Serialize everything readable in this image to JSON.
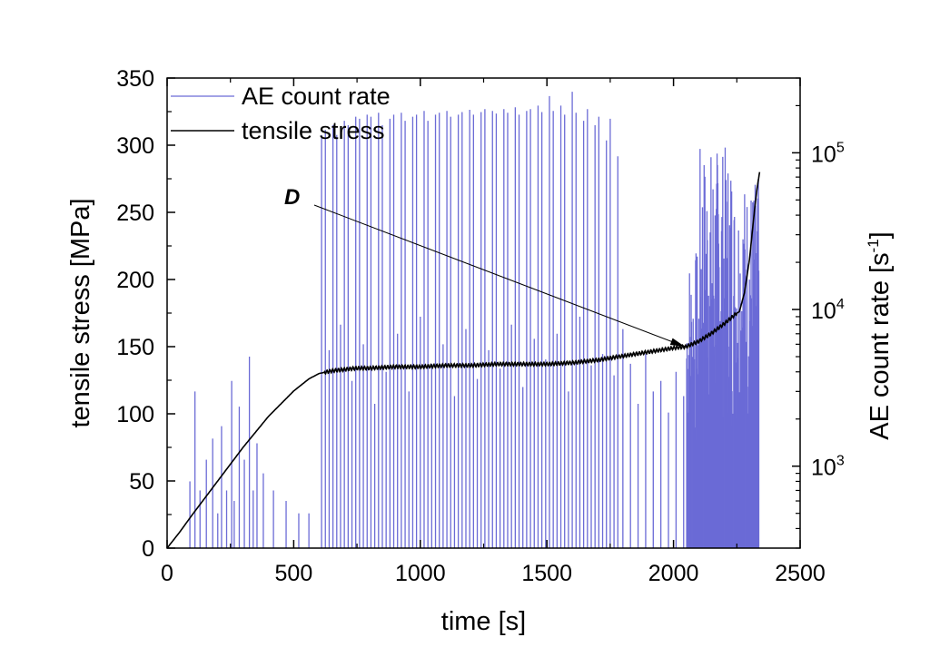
{
  "chart_data": {
    "type": "line",
    "xlabel": "time [s]",
    "xlim": [
      0,
      2500
    ],
    "x_ticks": [
      "0",
      "500",
      "1000",
      "1500",
      "2000",
      "2500"
    ],
    "y_left": {
      "label": "tensile stress [MPa]",
      "lim": [
        0,
        350
      ],
      "ticks": [
        "0",
        "50",
        "100",
        "150",
        "200",
        "250",
        "300",
        "350"
      ]
    },
    "y_right": {
      "label_main": "AE count rate [s",
      "label_exp": "-1",
      "label_close": "]",
      "scale": "log",
      "lim": [
        300,
        300000
      ],
      "ticks": [
        {
          "value": 1000,
          "base": "10",
          "exp": "3"
        },
        {
          "value": 10000,
          "base": "10",
          "exp": "4"
        },
        {
          "value": 100000,
          "base": "10",
          "exp": "5"
        }
      ]
    },
    "legend": {
      "placement": "top-left",
      "entries": [
        "AE count rate",
        "tensile stress"
      ]
    },
    "annotation": {
      "text": "D",
      "target": {
        "x": 2045,
        "y": 150
      }
    },
    "colors": {
      "ae": "#6b6bd6",
      "stress": "#000000"
    },
    "series": [
      {
        "name": "tensile stress",
        "axis": "left",
        "x": [
          0,
          50,
          100,
          200,
          300,
          400,
          500,
          560,
          600,
          650,
          700,
          750,
          800,
          900,
          1000,
          1100,
          1200,
          1300,
          1400,
          1500,
          1600,
          1700,
          1800,
          1900,
          2000,
          2050,
          2100,
          2150,
          2200,
          2250,
          2260,
          2280,
          2300,
          2320,
          2330,
          2340
        ],
        "y": [
          0,
          12,
          25,
          50,
          75,
          98,
          117,
          126,
          130,
          132,
          133,
          134,
          134,
          135,
          135,
          136,
          136,
          137,
          137,
          137,
          138,
          140,
          143,
          146,
          149,
          150,
          154,
          160,
          167,
          175,
          176,
          190,
          215,
          252,
          268,
          280
        ]
      },
      {
        "name": "AE count rate",
        "axis": "right",
        "type": "spikes",
        "x": [
          90,
          110,
          130,
          155,
          180,
          200,
          215,
          235,
          255,
          265,
          285,
          305,
          325,
          340,
          355,
          380,
          420,
          470,
          520,
          560,
          610,
          625,
          640,
          655,
          670,
          685,
          700,
          715,
          730,
          745,
          760,
          775,
          790,
          805,
          820,
          835,
          850,
          865,
          880,
          895,
          910,
          925,
          940,
          955,
          970,
          985,
          1000,
          1015,
          1030,
          1045,
          1060,
          1075,
          1090,
          1105,
          1120,
          1135,
          1150,
          1165,
          1180,
          1195,
          1210,
          1225,
          1240,
          1255,
          1270,
          1285,
          1300,
          1315,
          1330,
          1345,
          1360,
          1375,
          1390,
          1405,
          1420,
          1435,
          1450,
          1465,
          1480,
          1495,
          1510,
          1525,
          1540,
          1555,
          1570,
          1585,
          1600,
          1615,
          1630,
          1645,
          1660,
          1675,
          1690,
          1705,
          1720,
          1735,
          1750,
          1765,
          1780,
          1800,
          1830,
          1860,
          1890,
          1920,
          1950,
          1980,
          2010,
          2040
        ],
        "y": [
          800,
          3000,
          700,
          1100,
          1500,
          500,
          1800,
          700,
          3500,
          600,
          2400,
          1100,
          5000,
          700,
          1400,
          900,
          700,
          600,
          500,
          500,
          130000,
          140000,
          5500,
          150000,
          130000,
          8000,
          160000,
          150000,
          3500,
          170000,
          165000,
          6000,
          175000,
          170000,
          2500,
          180000,
          150000,
          4000,
          165000,
          175000,
          7000,
          180000,
          160000,
          3000,
          170000,
          175000,
          9000,
          185000,
          160000,
          4500,
          175000,
          180000,
          6000,
          185000,
          170000,
          2800,
          175000,
          182000,
          7500,
          188000,
          175000,
          3600,
          182000,
          190000,
          5500,
          185000,
          178000,
          4200,
          190000,
          180000,
          8000,
          195000,
          175000,
          3200,
          185000,
          190000,
          6500,
          200000,
          182000,
          4800,
          230000,
          185000,
          7000,
          200000,
          175000,
          3000,
          245000,
          180000,
          9000,
          160000,
          190000,
          4400,
          150000,
          170000,
          5200,
          120000,
          165000,
          3800,
          95000,
          7500,
          4500,
          2500,
          5200,
          3000,
          3500,
          2200,
          4000,
          2800
        ]
      }
    ]
  }
}
